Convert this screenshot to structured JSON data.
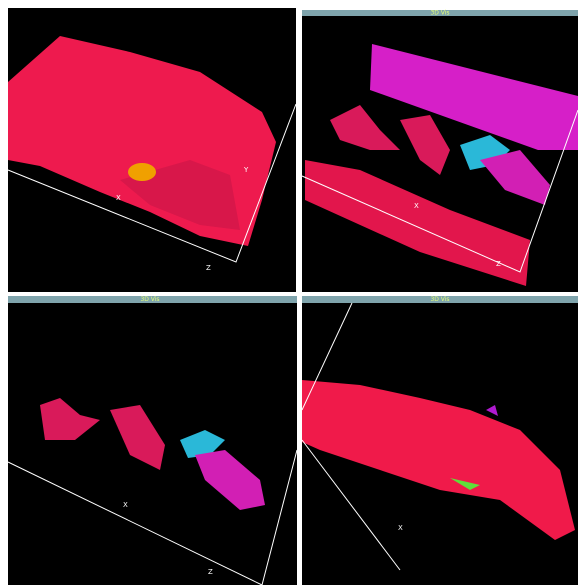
{
  "panels": [
    {
      "axes": {
        "x": "X",
        "y": "Y",
        "z": "Z"
      }
    },
    {
      "title": "3D Vis",
      "axes": {
        "x": "X",
        "z": "Z"
      }
    },
    {
      "title": "3D Vis",
      "axes": {
        "x": "X",
        "z": "Z"
      }
    },
    {
      "title": "3D Vis",
      "axes": {
        "x": "X"
      }
    }
  ]
}
